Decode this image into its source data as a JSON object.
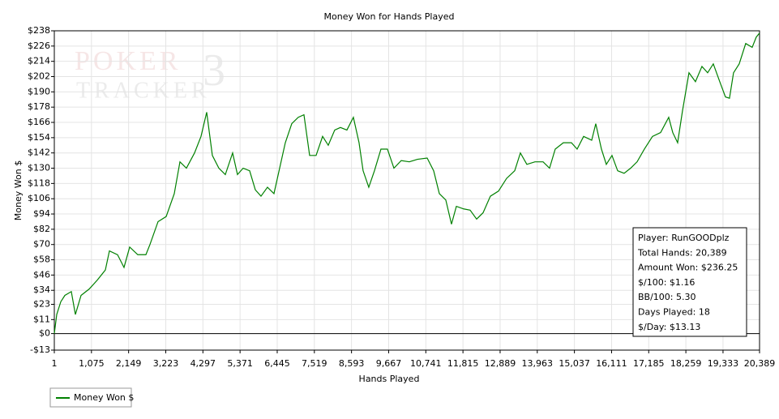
{
  "chart_data": {
    "type": "line",
    "title": "Money Won for Hands Played",
    "xlabel": "Hands Played",
    "ylabel": "Money Won $",
    "watermark": [
      "POKER",
      "TRACKER",
      "3"
    ],
    "x": [
      1,
      71,
      188,
      306,
      493,
      610,
      774,
      1009,
      1243,
      1477,
      1594,
      1829,
      2016,
      2180,
      2414,
      2649,
      2766,
      3000,
      3235,
      3469,
      3633,
      3820,
      4055,
      4242,
      4406,
      4570,
      4758,
      4945,
      5156,
      5296,
      5460,
      5648,
      5812,
      5976,
      6163,
      6351,
      6515,
      6679,
      6866,
      7054,
      7218,
      7382,
      7569,
      7757,
      7921,
      8108,
      8272,
      8460,
      8647,
      8811,
      8928,
      9092,
      9256,
      9444,
      9631,
      9819,
      10030,
      10264,
      10499,
      10780,
      10968,
      11132,
      11319,
      11483,
      11624,
      11835,
      12022,
      12210,
      12397,
      12608,
      12842,
      13077,
      13311,
      13475,
      13662,
      13897,
      14131,
      14318,
      14482,
      14717,
      14951,
      15115,
      15303,
      15537,
      15654,
      15818,
      15959,
      16123,
      16287,
      16474,
      16662,
      16849,
      17060,
      17294,
      17529,
      17763,
      17880,
      18021,
      18161,
      18349,
      18536,
      18724,
      18888,
      19052,
      19239,
      19403,
      19520,
      19637,
      19801,
      19989,
      20176,
      20293,
      20389
    ],
    "series": [
      {
        "name": "Money Won $",
        "color": "#008000",
        "values": [
          0,
          15,
          25,
          30,
          33,
          15,
          30,
          35,
          42,
          50,
          65,
          62,
          52,
          68,
          62,
          62,
          70,
          88,
          92,
          110,
          135,
          130,
          142,
          155,
          174,
          140,
          130,
          125,
          142,
          125,
          130,
          128,
          113,
          108,
          115,
          110,
          130,
          150,
          165,
          170,
          172,
          140,
          140,
          155,
          148,
          160,
          162,
          160,
          170,
          150,
          128,
          115,
          128,
          145,
          145,
          130,
          136,
          135,
          137,
          138,
          128,
          110,
          105,
          86,
          100,
          98,
          97,
          90,
          95,
          108,
          112,
          122,
          128,
          142,
          133,
          135,
          135,
          130,
          145,
          150,
          150,
          145,
          155,
          152,
          165,
          145,
          133,
          140,
          128,
          126,
          130,
          135,
          145,
          155,
          158,
          170,
          158,
          150,
          175,
          205,
          198,
          210,
          205,
          212,
          198,
          186,
          185,
          205,
          212,
          228,
          225,
          233,
          236.25
        ]
      }
    ],
    "xlim": [
      1,
      20389
    ],
    "xticks": [
      1,
      {
        "value": 1075,
        "label": "1,075"
      },
      {
        "value": 2149,
        "label": "2,149"
      },
      {
        "value": 3223,
        "label": "3,223"
      },
      {
        "value": 4297,
        "label": "4,297"
      },
      {
        "value": 5371,
        "label": "5,371"
      },
      {
        "value": 6445,
        "label": "6,445"
      },
      {
        "value": 7519,
        "label": "7,519"
      },
      {
        "value": 8593,
        "label": "8,593"
      },
      {
        "value": 9667,
        "label": "9,667"
      },
      {
        "value": 10741,
        "label": "10,741"
      },
      {
        "value": 11815,
        "label": "11,815"
      },
      {
        "value": 12889,
        "label": "12,889"
      },
      {
        "value": 13963,
        "label": "13,963"
      },
      {
        "value": 15037,
        "label": "15,037"
      },
      {
        "value": 16111,
        "label": "16,111"
      },
      {
        "value": 17185,
        "label": "17,185"
      },
      {
        "value": 18259,
        "label": "18,259"
      },
      {
        "value": 19333,
        "label": "19,333"
      },
      {
        "value": 20389,
        "label": "20,389"
      }
    ],
    "ylim": [
      -13,
      238
    ],
    "yticks": [
      {
        "value": -13,
        "label": "-$13"
      },
      {
        "value": 0,
        "label": "$0"
      },
      {
        "value": 11,
        "label": "$11"
      },
      {
        "value": 23,
        "label": "$23"
      },
      {
        "value": 34,
        "label": "$34"
      },
      {
        "value": 46,
        "label": "$46"
      },
      {
        "value": 58,
        "label": "$58"
      },
      {
        "value": 70,
        "label": "$70"
      },
      {
        "value": 82,
        "label": "$82"
      },
      {
        "value": 94,
        "label": "$94"
      },
      {
        "value": 106,
        "label": "$106"
      },
      {
        "value": 118,
        "label": "$118"
      },
      {
        "value": 130,
        "label": "$130"
      },
      {
        "value": 142,
        "label": "$142"
      },
      {
        "value": 154,
        "label": "$154"
      },
      {
        "value": 166,
        "label": "$166"
      },
      {
        "value": 178,
        "label": "$178"
      },
      {
        "value": 190,
        "label": "$190"
      },
      {
        "value": 202,
        "label": "$202"
      },
      {
        "value": 214,
        "label": "$214"
      },
      {
        "value": 226,
        "label": "$226"
      },
      {
        "value": 238,
        "label": "$238"
      }
    ],
    "grid": true,
    "stats": [
      "Player: RunGOODplz",
      "Total Hands: 20,389",
      "Amount Won: $236.25",
      "$/100: $1.16",
      "BB/100: 5.30",
      "Days Played: 18",
      "$/Day: $13.13"
    ]
  }
}
